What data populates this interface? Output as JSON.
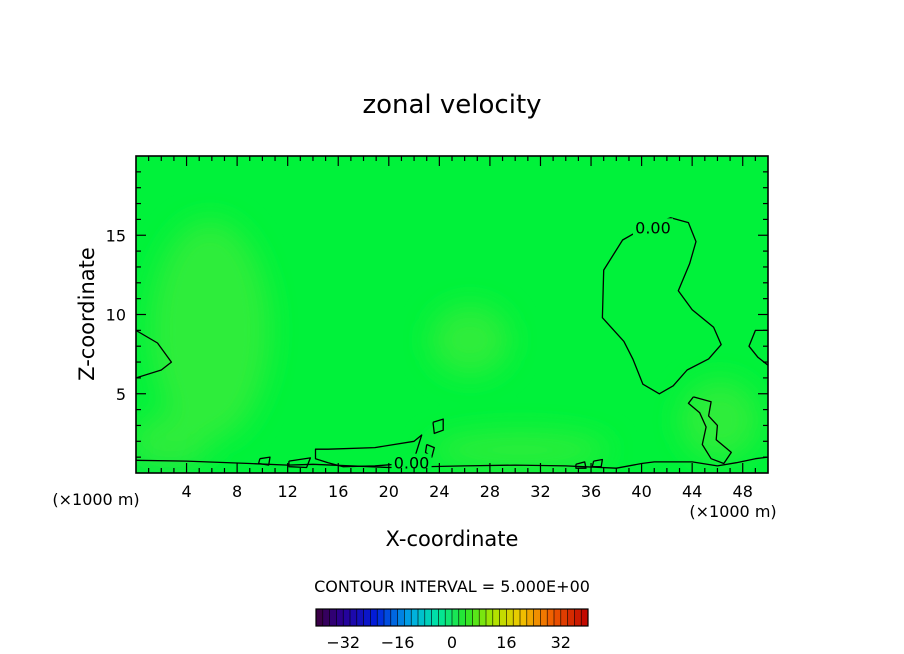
{
  "chart_data": {
    "type": "contour",
    "title": "zonal velocity",
    "xlabel": "X-coordinate",
    "ylabel": "Z-coordinate",
    "x_unit_left": "(×1000 m)",
    "x_unit_right": "(×1000 m)",
    "xlim": [
      0,
      50
    ],
    "ylim": [
      0,
      20
    ],
    "xticks": [
      4,
      8,
      12,
      16,
      20,
      24,
      28,
      32,
      36,
      40,
      44,
      48
    ],
    "yticks": [
      5,
      10,
      15
    ],
    "contour_interval_text": "CONTOUR INTERVAL = 5.000E+00",
    "contour_labels": [
      {
        "text": "0.00",
        "x": 40.9,
        "z": 15.5
      },
      {
        "text": "0.00",
        "x": 21.8,
        "z": 0.65
      }
    ],
    "zero_contours": [
      [
        [
          40.5,
          15.6
        ],
        [
          42.3,
          16.1
        ],
        [
          43.7,
          15.8
        ],
        [
          44.3,
          14.6
        ],
        [
          43.8,
          13.2
        ],
        [
          42.9,
          11.5
        ],
        [
          44.0,
          10.3
        ],
        [
          45.7,
          9.2
        ],
        [
          46.3,
          8.1
        ],
        [
          45.3,
          7.2
        ],
        [
          43.6,
          6.5
        ],
        [
          42.5,
          5.5
        ],
        [
          41.4,
          5.0
        ],
        [
          40.1,
          5.6
        ],
        [
          39.3,
          7.2
        ],
        [
          38.6,
          8.3
        ],
        [
          36.9,
          9.8
        ],
        [
          37.0,
          12.8
        ],
        [
          38.5,
          14.7
        ],
        [
          40.5,
          15.6
        ]
      ],
      [
        [
          0.0,
          9.0
        ],
        [
          1.7,
          8.2
        ],
        [
          2.8,
          7.0
        ],
        [
          2.0,
          6.5
        ],
        [
          0.0,
          6.0
        ]
      ],
      [
        [
          50.0,
          9.0
        ],
        [
          49.0,
          9.0
        ],
        [
          48.5,
          8.0
        ],
        [
          49.2,
          7.3
        ],
        [
          50.0,
          6.8
        ]
      ],
      [
        [
          44.1,
          4.8
        ],
        [
          45.5,
          4.5
        ],
        [
          45.3,
          3.6
        ],
        [
          46.0,
          3.0
        ],
        [
          45.9,
          2.1
        ],
        [
          47.1,
          1.3
        ],
        [
          46.5,
          0.6
        ],
        [
          45.5,
          0.9
        ],
        [
          44.8,
          1.8
        ],
        [
          45.1,
          2.9
        ],
        [
          44.6,
          3.8
        ],
        [
          43.7,
          4.4
        ],
        [
          44.1,
          4.8
        ]
      ],
      [
        [
          15.2,
          1.5
        ],
        [
          18.9,
          1.6
        ],
        [
          22.0,
          2.0
        ],
        [
          22.6,
          2.4
        ],
        [
          22.1,
          1.1
        ],
        [
          21.3,
          0.6
        ],
        [
          18.9,
          0.45
        ],
        [
          16.4,
          0.4
        ],
        [
          15.2,
          0.65
        ],
        [
          14.2,
          0.9
        ],
        [
          14.2,
          1.5
        ],
        [
          15.2,
          1.5
        ]
      ],
      [
        [
          23.5,
          3.2
        ],
        [
          24.3,
          3.4
        ],
        [
          24.3,
          2.7
        ],
        [
          23.6,
          2.5
        ],
        [
          23.5,
          3.2
        ]
      ],
      [
        [
          23.0,
          1.8
        ],
        [
          23.6,
          1.6
        ],
        [
          23.4,
          1.0
        ],
        [
          22.9,
          1.3
        ],
        [
          23.0,
          1.8
        ]
      ],
      [
        [
          9.8,
          0.9
        ],
        [
          10.6,
          1.0
        ],
        [
          10.5,
          0.5
        ],
        [
          9.7,
          0.6
        ],
        [
          9.8,
          0.9
        ]
      ],
      [
        [
          12.1,
          0.75
        ],
        [
          13.8,
          0.95
        ],
        [
          13.5,
          0.35
        ],
        [
          12.1,
          0.4
        ],
        [
          12.1,
          0.75
        ]
      ],
      [
        [
          34.8,
          0.55
        ],
        [
          35.5,
          0.7
        ],
        [
          35.6,
          0.3
        ],
        [
          34.8,
          0.3
        ],
        [
          34.8,
          0.55
        ]
      ],
      [
        [
          36.2,
          0.75
        ],
        [
          36.9,
          0.85
        ],
        [
          36.8,
          0.4
        ],
        [
          36.1,
          0.4
        ],
        [
          36.2,
          0.75
        ]
      ],
      [
        [
          40.0,
          0.6
        ],
        [
          41.0,
          0.7
        ],
        [
          44.0,
          0.7
        ],
        [
          46.0,
          0.45
        ],
        [
          47.5,
          0.65
        ],
        [
          49.0,
          0.9
        ],
        [
          50.0,
          1.0
        ]
      ],
      [
        [
          0.0,
          0.8
        ],
        [
          4.0,
          0.75
        ],
        [
          9.0,
          0.6
        ],
        [
          12.0,
          0.5
        ],
        [
          14.0,
          0.55
        ],
        [
          20.0,
          0.35
        ],
        [
          26.0,
          0.45
        ],
        [
          30.0,
          0.5
        ],
        [
          34.0,
          0.45
        ],
        [
          38.0,
          0.3
        ],
        [
          40.0,
          0.6
        ]
      ]
    ],
    "colorbar": {
      "ticks": [
        -32,
        -16,
        0,
        16,
        32
      ],
      "tick_labels": [
        "−32",
        "−16",
        "0",
        "16",
        "32"
      ],
      "range": [
        -40,
        40
      ],
      "n_bins": 40
    },
    "colors": {
      "field_base": "#00f23a",
      "field_light": "#2ded3a",
      "field_dark": "#00e845",
      "contour": "#000000"
    }
  }
}
